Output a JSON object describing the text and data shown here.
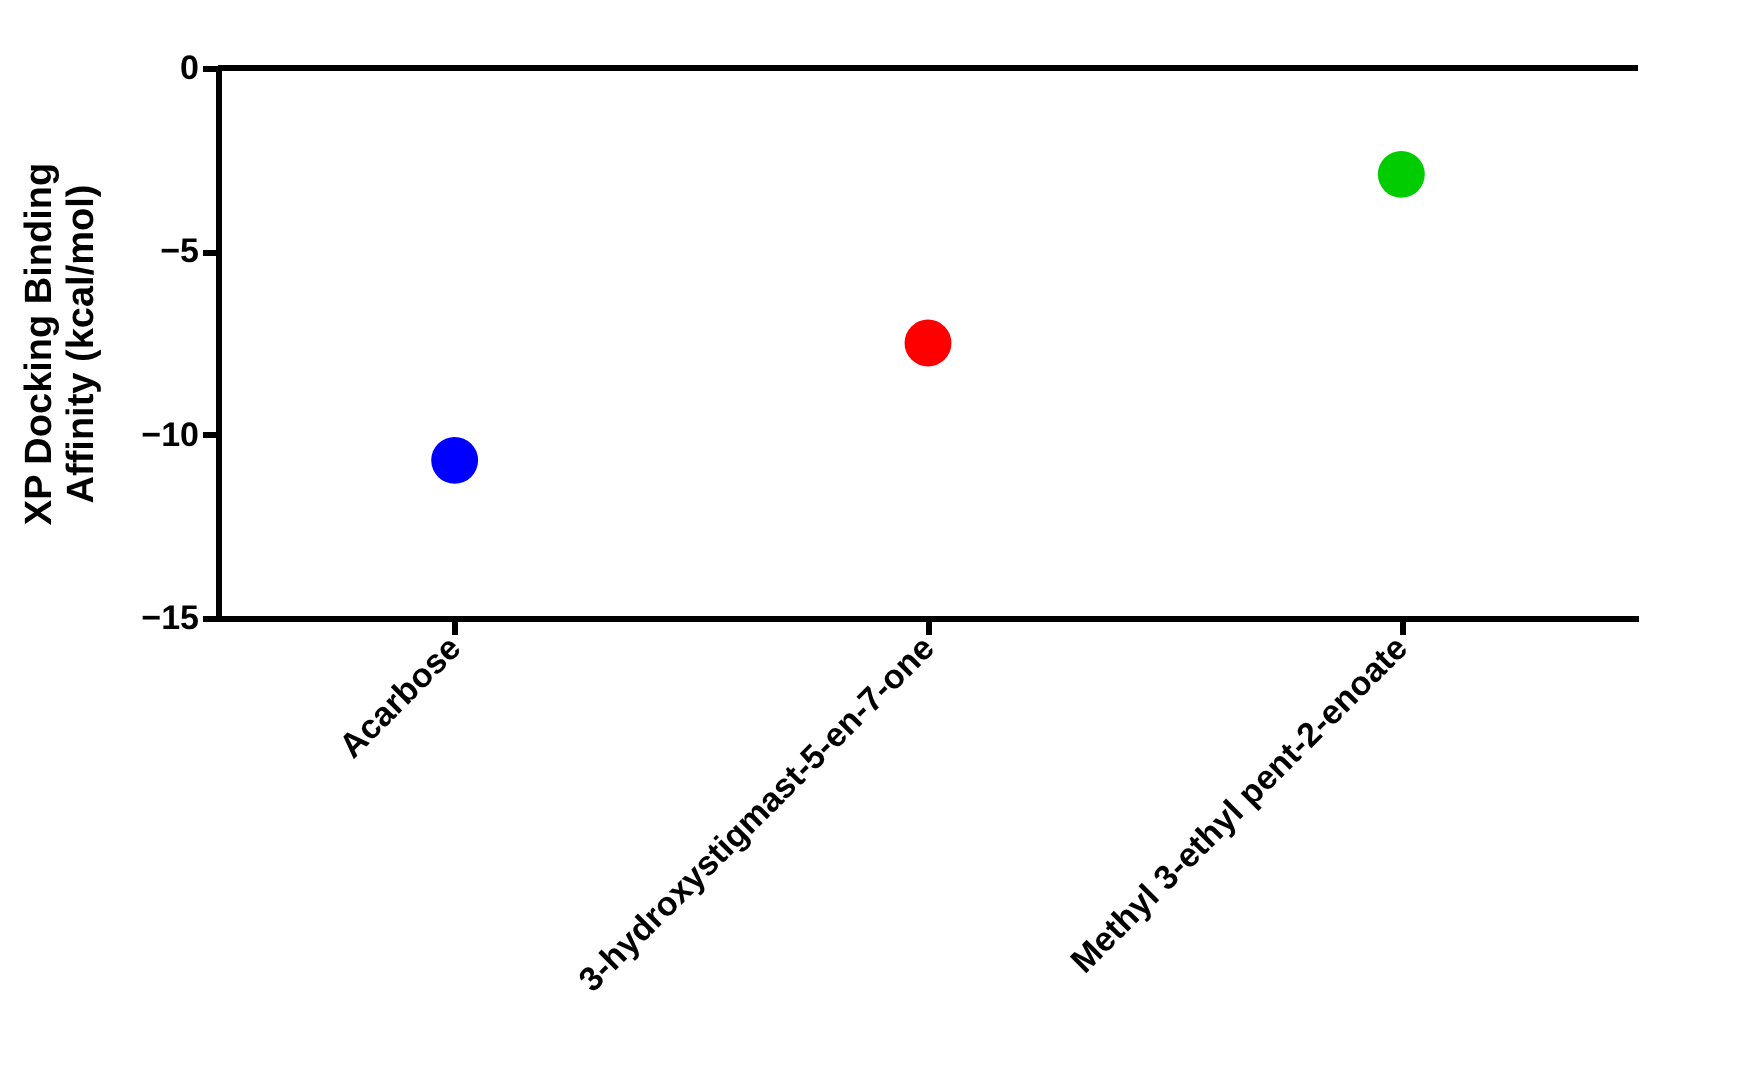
{
  "chart_data": {
    "type": "scatter",
    "ylabel": "XP Docking Binding Affinity (kcal/mol)",
    "categories": [
      "Acarbose",
      "3-hydroxystigmast-5-en-7-one",
      "Methyl 3-ethyl pent-2-enoate"
    ],
    "values": [
      -10.7,
      -7.5,
      -2.9
    ],
    "colors": [
      "#0000ff",
      "#ff0000",
      "#00cc00"
    ],
    "ylim": [
      -15,
      0
    ],
    "yticks": [
      -15,
      -10,
      -5,
      0
    ],
    "ref_lines": [
      {
        "axis": "y",
        "value": 0
      }
    ],
    "marker": "circle",
    "grid": false
  }
}
